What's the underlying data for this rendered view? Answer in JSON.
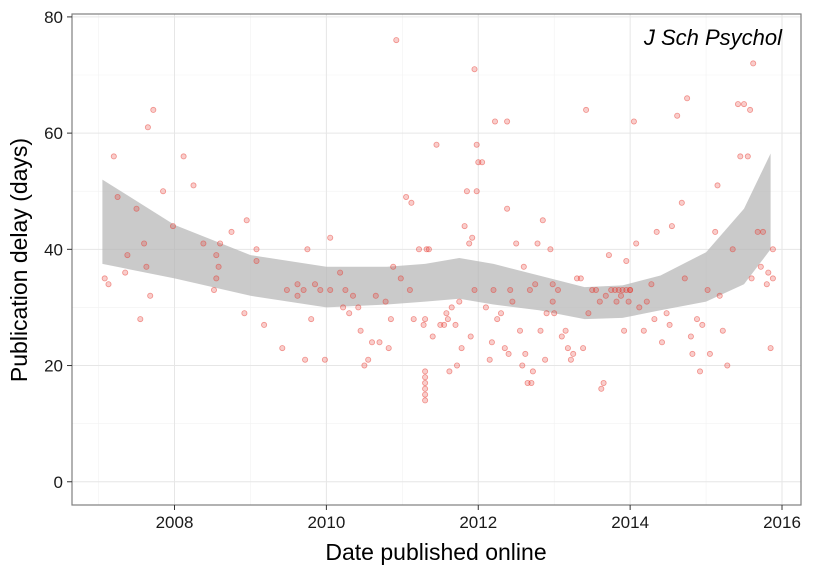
{
  "chart_data": {
    "type": "scatter",
    "title": "",
    "annotation": "J Sch Psychol",
    "xlabel": "Date published online",
    "ylabel": "Publication delay (days)",
    "xlim": [
      2006.65,
      2016.25
    ],
    "ylim": [
      -4,
      80.5
    ],
    "xticks": [
      2008,
      2010,
      2012,
      2014,
      2016
    ],
    "yticks": [
      0,
      20,
      40,
      60,
      80
    ],
    "grid": true,
    "point_color": "#e8392f",
    "band_color": "#b3b3b3",
    "series": [
      {
        "values_are": "scatter points [x = year, y = days]",
        "points": [
          [
            2007.08,
            35
          ],
          [
            2007.13,
            34
          ],
          [
            2007.2,
            56
          ],
          [
            2007.25,
            49
          ],
          [
            2007.35,
            36
          ],
          [
            2007.38,
            39
          ],
          [
            2007.5,
            47
          ],
          [
            2007.55,
            28
          ],
          [
            2007.6,
            41
          ],
          [
            2007.63,
            37
          ],
          [
            2007.65,
            61
          ],
          [
            2007.68,
            32
          ],
          [
            2007.72,
            64
          ],
          [
            2007.85,
            50
          ],
          [
            2007.98,
            44
          ],
          [
            2008.12,
            56
          ],
          [
            2008.25,
            51
          ],
          [
            2008.38,
            41
          ],
          [
            2008.52,
            33
          ],
          [
            2008.55,
            39
          ],
          [
            2008.58,
            37
          ],
          [
            2008.6,
            41
          ],
          [
            2008.55,
            35
          ],
          [
            2008.75,
            43
          ],
          [
            2008.92,
            29
          ],
          [
            2008.95,
            45
          ],
          [
            2009.08,
            38
          ],
          [
            2009.08,
            40
          ],
          [
            2009.18,
            27
          ],
          [
            2009.42,
            23
          ],
          [
            2009.48,
            33
          ],
          [
            2009.62,
            32
          ],
          [
            2009.62,
            34
          ],
          [
            2009.7,
            33
          ],
          [
            2009.72,
            21
          ],
          [
            2009.75,
            40
          ],
          [
            2009.8,
            28
          ],
          [
            2009.85,
            34
          ],
          [
            2009.92,
            33
          ],
          [
            2009.98,
            21
          ],
          [
            2010.05,
            33
          ],
          [
            2010.05,
            42
          ],
          [
            2010.18,
            36
          ],
          [
            2010.22,
            30
          ],
          [
            2010.25,
            33
          ],
          [
            2010.3,
            29
          ],
          [
            2010.35,
            32
          ],
          [
            2010.42,
            30
          ],
          [
            2010.45,
            26
          ],
          [
            2010.5,
            20
          ],
          [
            2010.55,
            21
          ],
          [
            2010.6,
            24
          ],
          [
            2010.65,
            32
          ],
          [
            2010.7,
            24
          ],
          [
            2010.78,
            31
          ],
          [
            2010.82,
            23
          ],
          [
            2010.85,
            28
          ],
          [
            2010.88,
            37
          ],
          [
            2010.92,
            76
          ],
          [
            2010.98,
            35
          ],
          [
            2011.05,
            49
          ],
          [
            2011.1,
            33
          ],
          [
            2011.12,
            48
          ],
          [
            2011.15,
            28
          ],
          [
            2011.22,
            40
          ],
          [
            2011.28,
            27
          ],
          [
            2011.3,
            19
          ],
          [
            2011.3,
            18
          ],
          [
            2011.3,
            17
          ],
          [
            2011.3,
            16
          ],
          [
            2011.3,
            15
          ],
          [
            2011.3,
            14
          ],
          [
            2011.3,
            28
          ],
          [
            2011.32,
            40
          ],
          [
            2011.35,
            40
          ],
          [
            2011.4,
            25
          ],
          [
            2011.45,
            58
          ],
          [
            2011.5,
            27
          ],
          [
            2011.55,
            27
          ],
          [
            2011.58,
            29
          ],
          [
            2011.6,
            28
          ],
          [
            2011.62,
            19
          ],
          [
            2011.65,
            30
          ],
          [
            2011.7,
            27
          ],
          [
            2011.72,
            20
          ],
          [
            2011.75,
            31
          ],
          [
            2011.78,
            23
          ],
          [
            2011.82,
            44
          ],
          [
            2011.85,
            50
          ],
          [
            2011.88,
            41
          ],
          [
            2011.9,
            25
          ],
          [
            2011.92,
            42
          ],
          [
            2011.95,
            71
          ],
          [
            2011.95,
            33
          ],
          [
            2011.98,
            50
          ],
          [
            2011.98,
            58
          ],
          [
            2012.0,
            55
          ],
          [
            2012.05,
            55
          ],
          [
            2012.1,
            30
          ],
          [
            2012.15,
            21
          ],
          [
            2012.18,
            24
          ],
          [
            2012.2,
            33
          ],
          [
            2012.22,
            62
          ],
          [
            2012.25,
            28
          ],
          [
            2012.3,
            29
          ],
          [
            2012.35,
            23
          ],
          [
            2012.38,
            62
          ],
          [
            2012.38,
            47
          ],
          [
            2012.4,
            22
          ],
          [
            2012.42,
            33
          ],
          [
            2012.45,
            31
          ],
          [
            2012.5,
            41
          ],
          [
            2012.55,
            26
          ],
          [
            2012.58,
            20
          ],
          [
            2012.6,
            37
          ],
          [
            2012.62,
            22
          ],
          [
            2012.65,
            17
          ],
          [
            2012.68,
            33
          ],
          [
            2012.7,
            17
          ],
          [
            2012.72,
            19
          ],
          [
            2012.75,
            34
          ],
          [
            2012.78,
            41
          ],
          [
            2012.82,
            26
          ],
          [
            2012.85,
            45
          ],
          [
            2012.88,
            21
          ],
          [
            2012.9,
            29
          ],
          [
            2012.95,
            40
          ],
          [
            2012.98,
            31
          ],
          [
            2012.98,
            34
          ],
          [
            2013.0,
            29
          ],
          [
            2013.05,
            33
          ],
          [
            2013.1,
            25
          ],
          [
            2013.15,
            26
          ],
          [
            2013.18,
            23
          ],
          [
            2013.22,
            21
          ],
          [
            2013.25,
            22
          ],
          [
            2013.3,
            35
          ],
          [
            2013.35,
            35
          ],
          [
            2013.38,
            23
          ],
          [
            2013.42,
            64
          ],
          [
            2013.45,
            29
          ],
          [
            2013.5,
            33
          ],
          [
            2013.55,
            33
          ],
          [
            2013.6,
            31
          ],
          [
            2013.62,
            16
          ],
          [
            2013.65,
            17
          ],
          [
            2013.68,
            32
          ],
          [
            2013.72,
            39
          ],
          [
            2013.75,
            33
          ],
          [
            2013.8,
            33
          ],
          [
            2013.82,
            31
          ],
          [
            2013.85,
            33
          ],
          [
            2013.88,
            32
          ],
          [
            2013.9,
            33
          ],
          [
            2013.92,
            26
          ],
          [
            2013.95,
            38
          ],
          [
            2013.95,
            33
          ],
          [
            2013.98,
            31
          ],
          [
            2014.0,
            33
          ],
          [
            2014.0,
            33
          ],
          [
            2014.05,
            62
          ],
          [
            2014.08,
            41
          ],
          [
            2014.12,
            30
          ],
          [
            2014.18,
            26
          ],
          [
            2014.22,
            31
          ],
          [
            2014.28,
            34
          ],
          [
            2014.32,
            28
          ],
          [
            2014.35,
            43
          ],
          [
            2014.42,
            24
          ],
          [
            2014.48,
            29
          ],
          [
            2014.52,
            27
          ],
          [
            2014.55,
            44
          ],
          [
            2014.62,
            63
          ],
          [
            2014.68,
            48
          ],
          [
            2014.72,
            35
          ],
          [
            2014.75,
            66
          ],
          [
            2014.8,
            25
          ],
          [
            2014.82,
            22
          ],
          [
            2014.88,
            28
          ],
          [
            2014.92,
            19
          ],
          [
            2014.95,
            27
          ],
          [
            2015.02,
            33
          ],
          [
            2015.05,
            22
          ],
          [
            2015.12,
            43
          ],
          [
            2015.15,
            51
          ],
          [
            2015.18,
            32
          ],
          [
            2015.22,
            26
          ],
          [
            2015.28,
            20
          ],
          [
            2015.35,
            40
          ],
          [
            2015.42,
            65
          ],
          [
            2015.45,
            56
          ],
          [
            2015.5,
            65
          ],
          [
            2015.55,
            56
          ],
          [
            2015.58,
            64
          ],
          [
            2015.6,
            35
          ],
          [
            2015.62,
            72
          ],
          [
            2015.68,
            43
          ],
          [
            2015.72,
            37
          ],
          [
            2015.75,
            43
          ],
          [
            2015.8,
            34
          ],
          [
            2015.82,
            36
          ],
          [
            2015.85,
            23
          ],
          [
            2015.88,
            35
          ],
          [
            2015.88,
            40
          ]
        ]
      }
    ],
    "smooth": {
      "x": [
        2007.05,
        2008.0,
        2009.0,
        2010.0,
        2010.8,
        2011.3,
        2011.75,
        2012.2,
        2012.8,
        2013.4,
        2013.9,
        2014.4,
        2015.0,
        2015.5,
        2015.85
      ],
      "upper": [
        52,
        44.2,
        39,
        37,
        37,
        37.5,
        38.5,
        37.5,
        35.5,
        33.5,
        33.8,
        35.5,
        39.5,
        47,
        56.5
      ],
      "lower": [
        37.5,
        35,
        32,
        30,
        30.5,
        31,
        31.5,
        30.5,
        29.5,
        28,
        28.2,
        29.5,
        31,
        34,
        40
      ]
    }
  }
}
